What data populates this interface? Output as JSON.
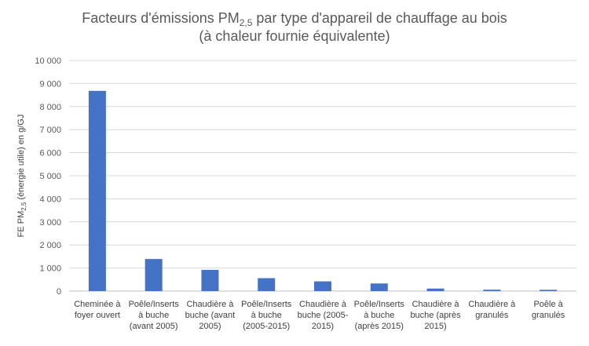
{
  "chart_data": {
    "type": "bar",
    "title_main": "Facteurs d'émissions PM",
    "title_sub": "2,5",
    "title_rest": " par type d'appareil de chauffage au bois",
    "title_line2": "(à chaleur fournie équivalente)",
    "ylabel_main": "FE PM",
    "ylabel_sub": "2,5",
    "ylabel_rest": " (énergie utile) en g/GJ",
    "ylim": [
      0,
      10000
    ],
    "yticks": [
      "0",
      "1 000",
      "2 000",
      "3 000",
      "4 000",
      "5 000",
      "6 000",
      "7 000",
      "8 000",
      "9 000",
      "10 000"
    ],
    "grid": true,
    "bar_color": "#4472c4",
    "categories": [
      [
        "Cheminée à",
        "foyer ouvert"
      ],
      [
        "Poêle/Inserts",
        "à buche",
        "(avant 2005)"
      ],
      [
        "Chaudière à",
        "buche (avant",
        "2005)"
      ],
      [
        "Poêle/Inserts",
        "à buche",
        "(2005-2015)"
      ],
      [
        "Chaudière à",
        "buche (2005-",
        "2015)"
      ],
      [
        "Poêle/Inserts",
        "à buche",
        "(après 2015)"
      ],
      [
        "Chaudière à",
        "buche (après",
        "2015)"
      ],
      [
        "Chaudière à",
        "granulés"
      ],
      [
        "Poêle à",
        "granulés"
      ]
    ],
    "values": [
      8680,
      1390,
      920,
      560,
      420,
      330,
      110,
      60,
      55
    ]
  }
}
